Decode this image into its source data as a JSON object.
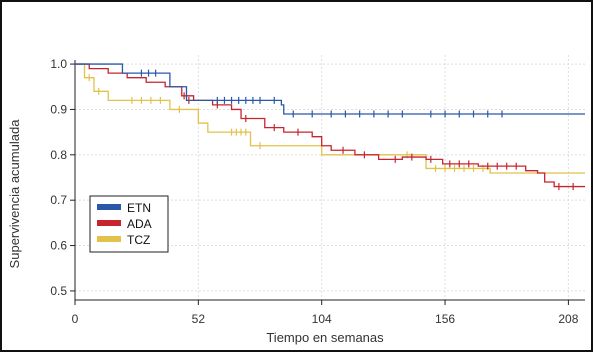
{
  "chart_data": {
    "type": "line",
    "subtype": "kaplan-meier",
    "xlabel": "Tiempo en semanas",
    "ylabel": "Supervivencia acumulada",
    "xlim": [
      0,
      215
    ],
    "ylim": [
      0.48,
      1.02
    ],
    "xticks": [
      "0",
      "52",
      "104",
      "156",
      "208"
    ],
    "yticks": [
      "0.5",
      "0.6",
      "0.7",
      "0.8",
      "0.9",
      "1.0"
    ],
    "grid": true,
    "legend_position": "bottom-left",
    "series": [
      {
        "name": "ETN",
        "color": "#2a58a8",
        "steps": [
          [
            0,
            1.0
          ],
          [
            20,
            0.98
          ],
          [
            40,
            0.95
          ],
          [
            47,
            0.92
          ],
          [
            87,
            0.91
          ],
          [
            88,
            0.89
          ],
          [
            215,
            0.89
          ]
        ],
        "censored": [
          [
            28,
            0.98
          ],
          [
            31,
            0.98
          ],
          [
            34,
            0.98
          ],
          [
            60,
            0.92
          ],
          [
            63,
            0.92
          ],
          [
            66,
            0.92
          ],
          [
            69,
            0.92
          ],
          [
            72,
            0.92
          ],
          [
            75,
            0.92
          ],
          [
            78,
            0.92
          ],
          [
            84,
            0.92
          ],
          [
            92,
            0.89
          ],
          [
            100,
            0.89
          ],
          [
            108,
            0.89
          ],
          [
            114,
            0.89
          ],
          [
            120,
            0.89
          ],
          [
            126,
            0.89
          ],
          [
            132,
            0.89
          ],
          [
            138,
            0.89
          ],
          [
            150,
            0.89
          ],
          [
            156,
            0.89
          ],
          [
            162,
            0.89
          ],
          [
            168,
            0.89
          ],
          [
            174,
            0.89
          ],
          [
            180,
            0.89
          ]
        ]
      },
      {
        "name": "ADA",
        "color": "#c8242e",
        "steps": [
          [
            0,
            1.0
          ],
          [
            6,
            0.99
          ],
          [
            14,
            0.98
          ],
          [
            22,
            0.97
          ],
          [
            30,
            0.96
          ],
          [
            38,
            0.95
          ],
          [
            45,
            0.93
          ],
          [
            50,
            0.92
          ],
          [
            58,
            0.91
          ],
          [
            66,
            0.9
          ],
          [
            70,
            0.88
          ],
          [
            80,
            0.86
          ],
          [
            88,
            0.85
          ],
          [
            100,
            0.84
          ],
          [
            104,
            0.82
          ],
          [
            108,
            0.81
          ],
          [
            118,
            0.8
          ],
          [
            128,
            0.79
          ],
          [
            138,
            0.795
          ],
          [
            148,
            0.79
          ],
          [
            155,
            0.78
          ],
          [
            170,
            0.775
          ],
          [
            190,
            0.765
          ],
          [
            195,
            0.76
          ],
          [
            198,
            0.74
          ],
          [
            202,
            0.73
          ],
          [
            215,
            0.73
          ]
        ],
        "censored": [
          [
            46,
            0.93
          ],
          [
            48,
            0.92
          ],
          [
            60,
            0.91
          ],
          [
            72,
            0.88
          ],
          [
            84,
            0.86
          ],
          [
            94,
            0.85
          ],
          [
            113,
            0.81
          ],
          [
            122,
            0.8
          ],
          [
            135,
            0.79
          ],
          [
            142,
            0.795
          ],
          [
            150,
            0.79
          ],
          [
            158,
            0.78
          ],
          [
            162,
            0.78
          ],
          [
            166,
            0.78
          ],
          [
            174,
            0.775
          ],
          [
            178,
            0.775
          ],
          [
            182,
            0.775
          ],
          [
            186,
            0.775
          ],
          [
            204,
            0.73
          ],
          [
            210,
            0.73
          ]
        ]
      },
      {
        "name": "TCZ",
        "color": "#e2c24a",
        "steps": [
          [
            0,
            1.0
          ],
          [
            4,
            0.97
          ],
          [
            8,
            0.94
          ],
          [
            14,
            0.92
          ],
          [
            40,
            0.9
          ],
          [
            52,
            0.87
          ],
          [
            56,
            0.85
          ],
          [
            74,
            0.82
          ],
          [
            100,
            0.82
          ],
          [
            104,
            0.8
          ],
          [
            148,
            0.77
          ],
          [
            175,
            0.76
          ],
          [
            215,
            0.76
          ]
        ],
        "censored": [
          [
            6,
            0.97
          ],
          [
            10,
            0.94
          ],
          [
            24,
            0.92
          ],
          [
            28,
            0.92
          ],
          [
            32,
            0.92
          ],
          [
            36,
            0.92
          ],
          [
            44,
            0.9
          ],
          [
            66,
            0.85
          ],
          [
            68,
            0.85
          ],
          [
            70,
            0.85
          ],
          [
            72,
            0.85
          ],
          [
            78,
            0.82
          ],
          [
            140,
            0.8
          ],
          [
            152,
            0.77
          ],
          [
            156,
            0.77
          ],
          [
            160,
            0.77
          ],
          [
            164,
            0.77
          ],
          [
            168,
            0.77
          ],
          [
            172,
            0.77
          ]
        ]
      }
    ]
  }
}
